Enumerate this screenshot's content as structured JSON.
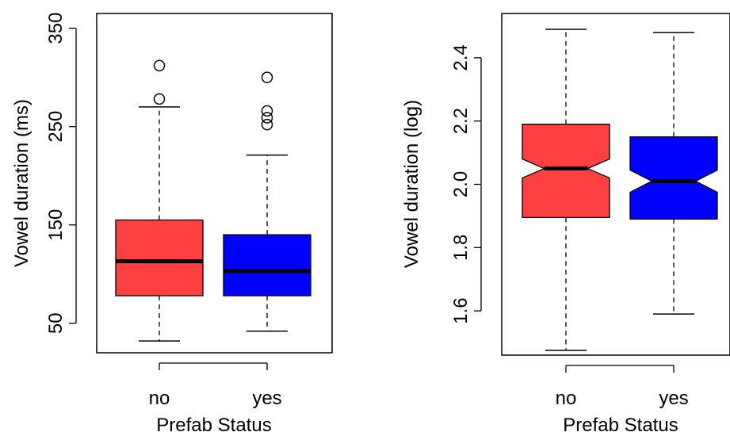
{
  "chart_data": [
    {
      "type": "box",
      "xlabel": "Prefab Status",
      "ylabel": "Vowel duration (ms)",
      "ylim": [
        20,
        365
      ],
      "yticks": [
        "50",
        "150",
        "250",
        "350"
      ],
      "categories": [
        "no",
        "yes"
      ],
      "notch": false,
      "boxes": [
        {
          "name": "no",
          "color": "#ff4040",
          "min": 32,
          "q1": 78,
          "median": 113,
          "q3": 155,
          "max": 270,
          "outliers": [
            278,
            312
          ]
        },
        {
          "name": "yes",
          "color": "#0000ff",
          "min": 42,
          "q1": 78,
          "median": 103,
          "q3": 140,
          "max": 221,
          "outliers": [
            252,
            259,
            266,
            300
          ]
        }
      ]
    },
    {
      "type": "box",
      "xlabel": "Prefab Status",
      "ylabel": "Vowel duration (log)",
      "ylim": [
        1.46,
        2.54
      ],
      "yticks": [
        "1.6",
        "1.8",
        "2.0",
        "2.2",
        "2.4"
      ],
      "categories": [
        "no",
        "yes"
      ],
      "notch": true,
      "boxes": [
        {
          "name": "no",
          "color": "#ff4040",
          "min": 1.475,
          "q1": 1.895,
          "median": 2.05,
          "q3": 2.19,
          "max": 2.49,
          "notch_low": 2.02,
          "notch_high": 2.08,
          "outliers": []
        },
        {
          "name": "yes",
          "color": "#0000ff",
          "min": 1.59,
          "q1": 1.89,
          "median": 2.01,
          "q3": 2.15,
          "max": 2.48,
          "notch_low": 1.975,
          "notch_high": 2.045,
          "outliers": []
        }
      ]
    }
  ]
}
